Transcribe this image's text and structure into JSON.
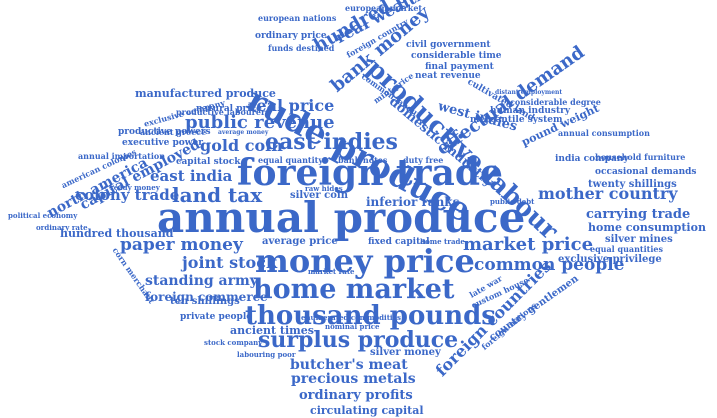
{
  "title": "Word Cloud",
  "color": "#3b68c8",
  "words": [
    "annual produce",
    "foreign trade",
    "money price",
    "home market",
    "thousand pounds",
    "surplus produce",
    "rude produce",
    "productive labour",
    "east indies",
    "land tax",
    "paper money",
    "market price",
    "common people",
    "mother country",
    "carrying trade",
    "public revenue",
    "real price",
    "gold coin",
    "east india",
    "colony trade",
    "joint stock",
    "standing army",
    "foreign commerce",
    "butcher's meat",
    "precious metals",
    "ordinary profits",
    "circulating capital",
    "foreign countries",
    "effectual demand",
    "bank money",
    "hundred pounds",
    "real wealth",
    "west indies",
    "domestic industry",
    "north america",
    "capital employed",
    "hundred thousand",
    "inferior ranks",
    "home consumption",
    "silver mines",
    "exclusive privilege",
    "twenty shillings",
    "india company",
    "manufactured produce",
    "ancient times",
    "ten shillings",
    "silver money",
    "average price",
    "silver coin",
    "fixed capital",
    "private people",
    "productive powers",
    "executive power",
    "natural price",
    "ordinary price",
    "european market",
    "european nations",
    "funds destined",
    "foreign country",
    "civil government",
    "considerable time",
    "final payment",
    "neat revenue",
    "mercantile system",
    "human industry",
    "pound weight",
    "cultivated land",
    "considerable degree",
    "annual consumption",
    "household furniture",
    "occasional demands",
    "equal quantities",
    "productive labourers",
    "exclusive company",
    "ancient greece",
    "annual importation",
    "capital stock",
    "equal quantity",
    "bank notes",
    "duty free",
    "american colonies",
    "ready money",
    "political economy",
    "ordinary rate",
    "corn merchant",
    "raw hides",
    "public debt",
    "home trade",
    "market rate",
    "enumerated commodities",
    "nominal price",
    "stock company",
    "labouring poor",
    "late war",
    "custom house",
    "country gentlemen",
    "foreign nations",
    "mint price",
    "common labour",
    "average money",
    "distant employment"
  ]
}
